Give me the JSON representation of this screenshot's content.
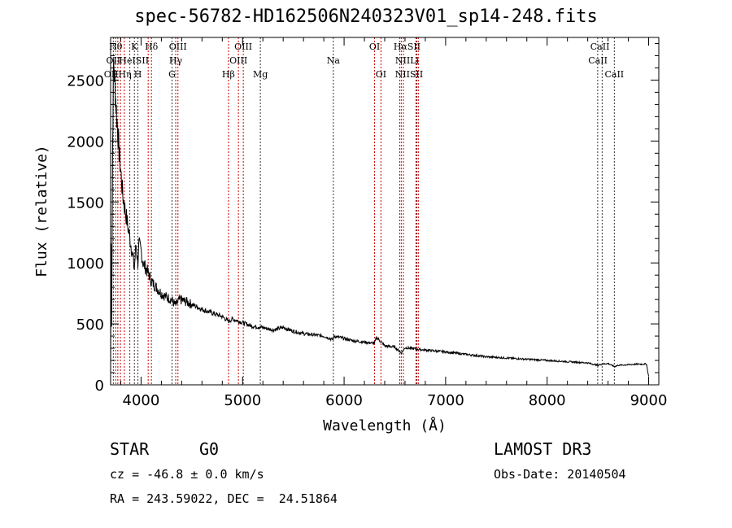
{
  "title": "spec-56782-HD162506N240323V01_sp14-248.fits",
  "chart_data": {
    "type": "line",
    "title": "spec-56782-HD162506N240323V01_sp14-248.fits",
    "xlabel": "Wavelength (Å)",
    "ylabel": "Flux (relative)",
    "xlim": [
      3700,
      9100
    ],
    "ylim": [
      0,
      2850
    ],
    "x_ticks": [
      "4000",
      "5000",
      "6000",
      "7000",
      "8000",
      "9000"
    ],
    "y_ticks": [
      "0",
      "500",
      "1000",
      "1500",
      "2000",
      "2500"
    ],
    "series": [
      {
        "name": "spectrum",
        "x": [
          3700,
          3705,
          3710,
          3720,
          3730,
          3740,
          3750,
          3760,
          3770,
          3780,
          3790,
          3800,
          3820,
          3840,
          3860,
          3880,
          3900,
          3920,
          3933,
          3950,
          3968,
          3980,
          4000,
          4020,
          4050,
          4080,
          4101,
          4120,
          4150,
          4200,
          4250,
          4300,
          4340,
          4380,
          4450,
          4500,
          4600,
          4700,
          4800,
          4861,
          4900,
          5000,
          5100,
          5200,
          5300,
          5400,
          5500,
          5600,
          5700,
          5800,
          5893,
          5900,
          6000,
          6100,
          6200,
          6300,
          6320,
          6400,
          6500,
          6563,
          6600,
          6700,
          6800,
          7000,
          7200,
          7400,
          7600,
          7800,
          8000,
          8200,
          8400,
          8498,
          8542,
          8600,
          8662,
          8700,
          8800,
          8900,
          8980,
          8990,
          9000
        ],
        "y": [
          50,
          1150,
          500,
          2000,
          2650,
          2500,
          2350,
          2200,
          2100,
          1950,
          1850,
          1750,
          1550,
          1450,
          1350,
          1250,
          1150,
          1050,
          950,
          1150,
          1000,
          1150,
          1100,
          1000,
          950,
          900,
          850,
          830,
          800,
          750,
          720,
          700,
          650,
          700,
          680,
          660,
          620,
          590,
          560,
          520,
          540,
          510,
          480,
          470,
          450,
          470,
          440,
          420,
          410,
          400,
          370,
          400,
          380,
          360,
          350,
          340,
          390,
          320,
          310,
          260,
          305,
          295,
          285,
          270,
          250,
          230,
          220,
          210,
          200,
          190,
          180,
          160,
          170,
          175,
          150,
          160,
          165,
          170,
          170,
          110,
          70
        ]
      }
    ],
    "lines": {
      "red": [
        {
          "x": 3727,
          "label": "OII"
        },
        {
          "x": 3750,
          "label": "Hθ"
        },
        {
          "x": 3771,
          "label": "Hη"
        },
        {
          "x": 3797,
          "label": "Hθ"
        },
        {
          "x": 3835,
          "label": "Hη"
        },
        {
          "x": 3889,
          "label": "HeI"
        },
        {
          "x": 4070,
          "label": "SII"
        },
        {
          "x": 4102,
          "label": "Hδ"
        },
        {
          "x": 4341,
          "label": "Hγ"
        },
        {
          "x": 4363,
          "label": "OIII"
        },
        {
          "x": 4861,
          "label": "Hβ"
        },
        {
          "x": 4959,
          "label": "OIII"
        },
        {
          "x": 5007,
          "label": "OIII"
        },
        {
          "x": 6300,
          "label": "OI"
        },
        {
          "x": 6363,
          "label": "OI"
        },
        {
          "x": 6548,
          "label": "NII"
        },
        {
          "x": 6563,
          "label": "Hα"
        },
        {
          "x": 6584,
          "label": "NII"
        },
        {
          "x": 6717,
          "label": "SII"
        },
        {
          "x": 6731,
          "label": "SII"
        }
      ],
      "black": [
        {
          "x": 3934,
          "label": "K"
        },
        {
          "x": 3969,
          "label": "H"
        },
        {
          "x": 4305,
          "label": "G"
        },
        {
          "x": 5175,
          "label": "Mg"
        },
        {
          "x": 5894,
          "label": "Na"
        },
        {
          "x": 6708,
          "label": "Li"
        },
        {
          "x": 8498,
          "label": "CaII"
        },
        {
          "x": 8542,
          "label": "CaII"
        },
        {
          "x": 8662,
          "label": "CaII"
        }
      ]
    },
    "line_labels": [
      {
        "text": "Hθ",
        "x": 3750,
        "row": 1
      },
      {
        "text": "K",
        "x": 3934,
        "row": 1
      },
      {
        "text": "Hδ",
        "x": 4102,
        "row": 1
      },
      {
        "text": "OIII",
        "x": 4363,
        "row": 1
      },
      {
        "text": "OIII",
        "x": 5007,
        "row": 1
      },
      {
        "text": "OI",
        "x": 6300,
        "row": 1
      },
      {
        "text": "HαSII",
        "x": 6620,
        "row": 1
      },
      {
        "text": "CaII",
        "x": 8520,
        "row": 1
      },
      {
        "text": "OII",
        "x": 3727,
        "row": 2
      },
      {
        "text": "HeISII",
        "x": 3930,
        "row": 2
      },
      {
        "text": "Hγ",
        "x": 4341,
        "row": 2
      },
      {
        "text": "OIII",
        "x": 4959,
        "row": 2
      },
      {
        "text": "Na",
        "x": 5894,
        "row": 2
      },
      {
        "text": "NIILi",
        "x": 6620,
        "row": 2
      },
      {
        "text": "CaII",
        "x": 8500,
        "row": 2
      },
      {
        "text": "OIIHη",
        "x": 3770,
        "row": 3
      },
      {
        "text": "H",
        "x": 3969,
        "row": 3
      },
      {
        "text": "G",
        "x": 4305,
        "row": 3
      },
      {
        "text": "Hβ",
        "x": 4861,
        "row": 3
      },
      {
        "text": "Mg",
        "x": 5175,
        "row": 3
      },
      {
        "text": "OI",
        "x": 6363,
        "row": 3
      },
      {
        "text": "NIISII",
        "x": 6640,
        "row": 3
      },
      {
        "text": "CaII",
        "x": 8662,
        "row": 3
      }
    ]
  },
  "info": {
    "object_class": "STAR",
    "subclass": "G0",
    "survey": "LAMOST DR3",
    "cz": "cz = -46.8 ± 0.0 km/s",
    "obs_date": "Obs-Date: 20140504",
    "coords": "RA = 243.59022, DEC =  24.51864"
  }
}
